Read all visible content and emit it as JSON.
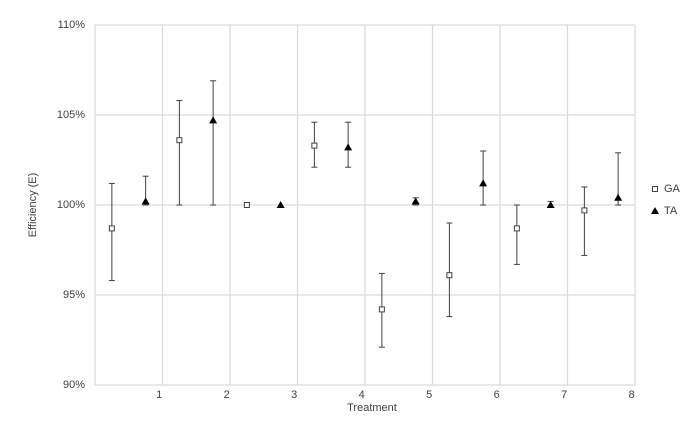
{
  "chart_data": {
    "type": "errorbar-scatter",
    "x_label": "Treatment",
    "y_label": "Efficiency (E)",
    "categories": [
      "1",
      "2",
      "3",
      "4",
      "5",
      "6",
      "7",
      "8"
    ],
    "series": [
      {
        "name": "GA",
        "marker": "square",
        "color": "#404040",
        "values": [
          98.7,
          103.6,
          100.0,
          103.3,
          94.2,
          96.1,
          98.7,
          99.7
        ],
        "error_minus": [
          2.9,
          3.6,
          0,
          1.2,
          2.1,
          2.3,
          2.0,
          2.5
        ],
        "error_plus": [
          2.5,
          2.2,
          0,
          1.3,
          2.0,
          2.9,
          1.3,
          1.3
        ]
      },
      {
        "name": "TA",
        "marker": "triangle",
        "color": "#000000",
        "values": [
          100.2,
          104.7,
          100.0,
          103.2,
          100.2,
          101.2,
          100.0,
          100.4
        ],
        "error_minus": [
          0.2,
          4.7,
          0,
          1.1,
          0.2,
          1.2,
          0.1,
          0.4
        ],
        "error_plus": [
          1.4,
          2.2,
          0,
          1.4,
          0.2,
          1.8,
          0.2,
          2.5
        ]
      }
    ],
    "ylim": [
      90,
      110
    ],
    "yticks": [
      {
        "value": 90,
        "label": "90%"
      },
      {
        "value": 95,
        "label": "95%"
      },
      {
        "value": 100,
        "label": "100%"
      },
      {
        "value": 105,
        "label": "105%"
      },
      {
        "value": 110,
        "label": "110%"
      }
    ],
    "grid": true,
    "legend": "right"
  }
}
